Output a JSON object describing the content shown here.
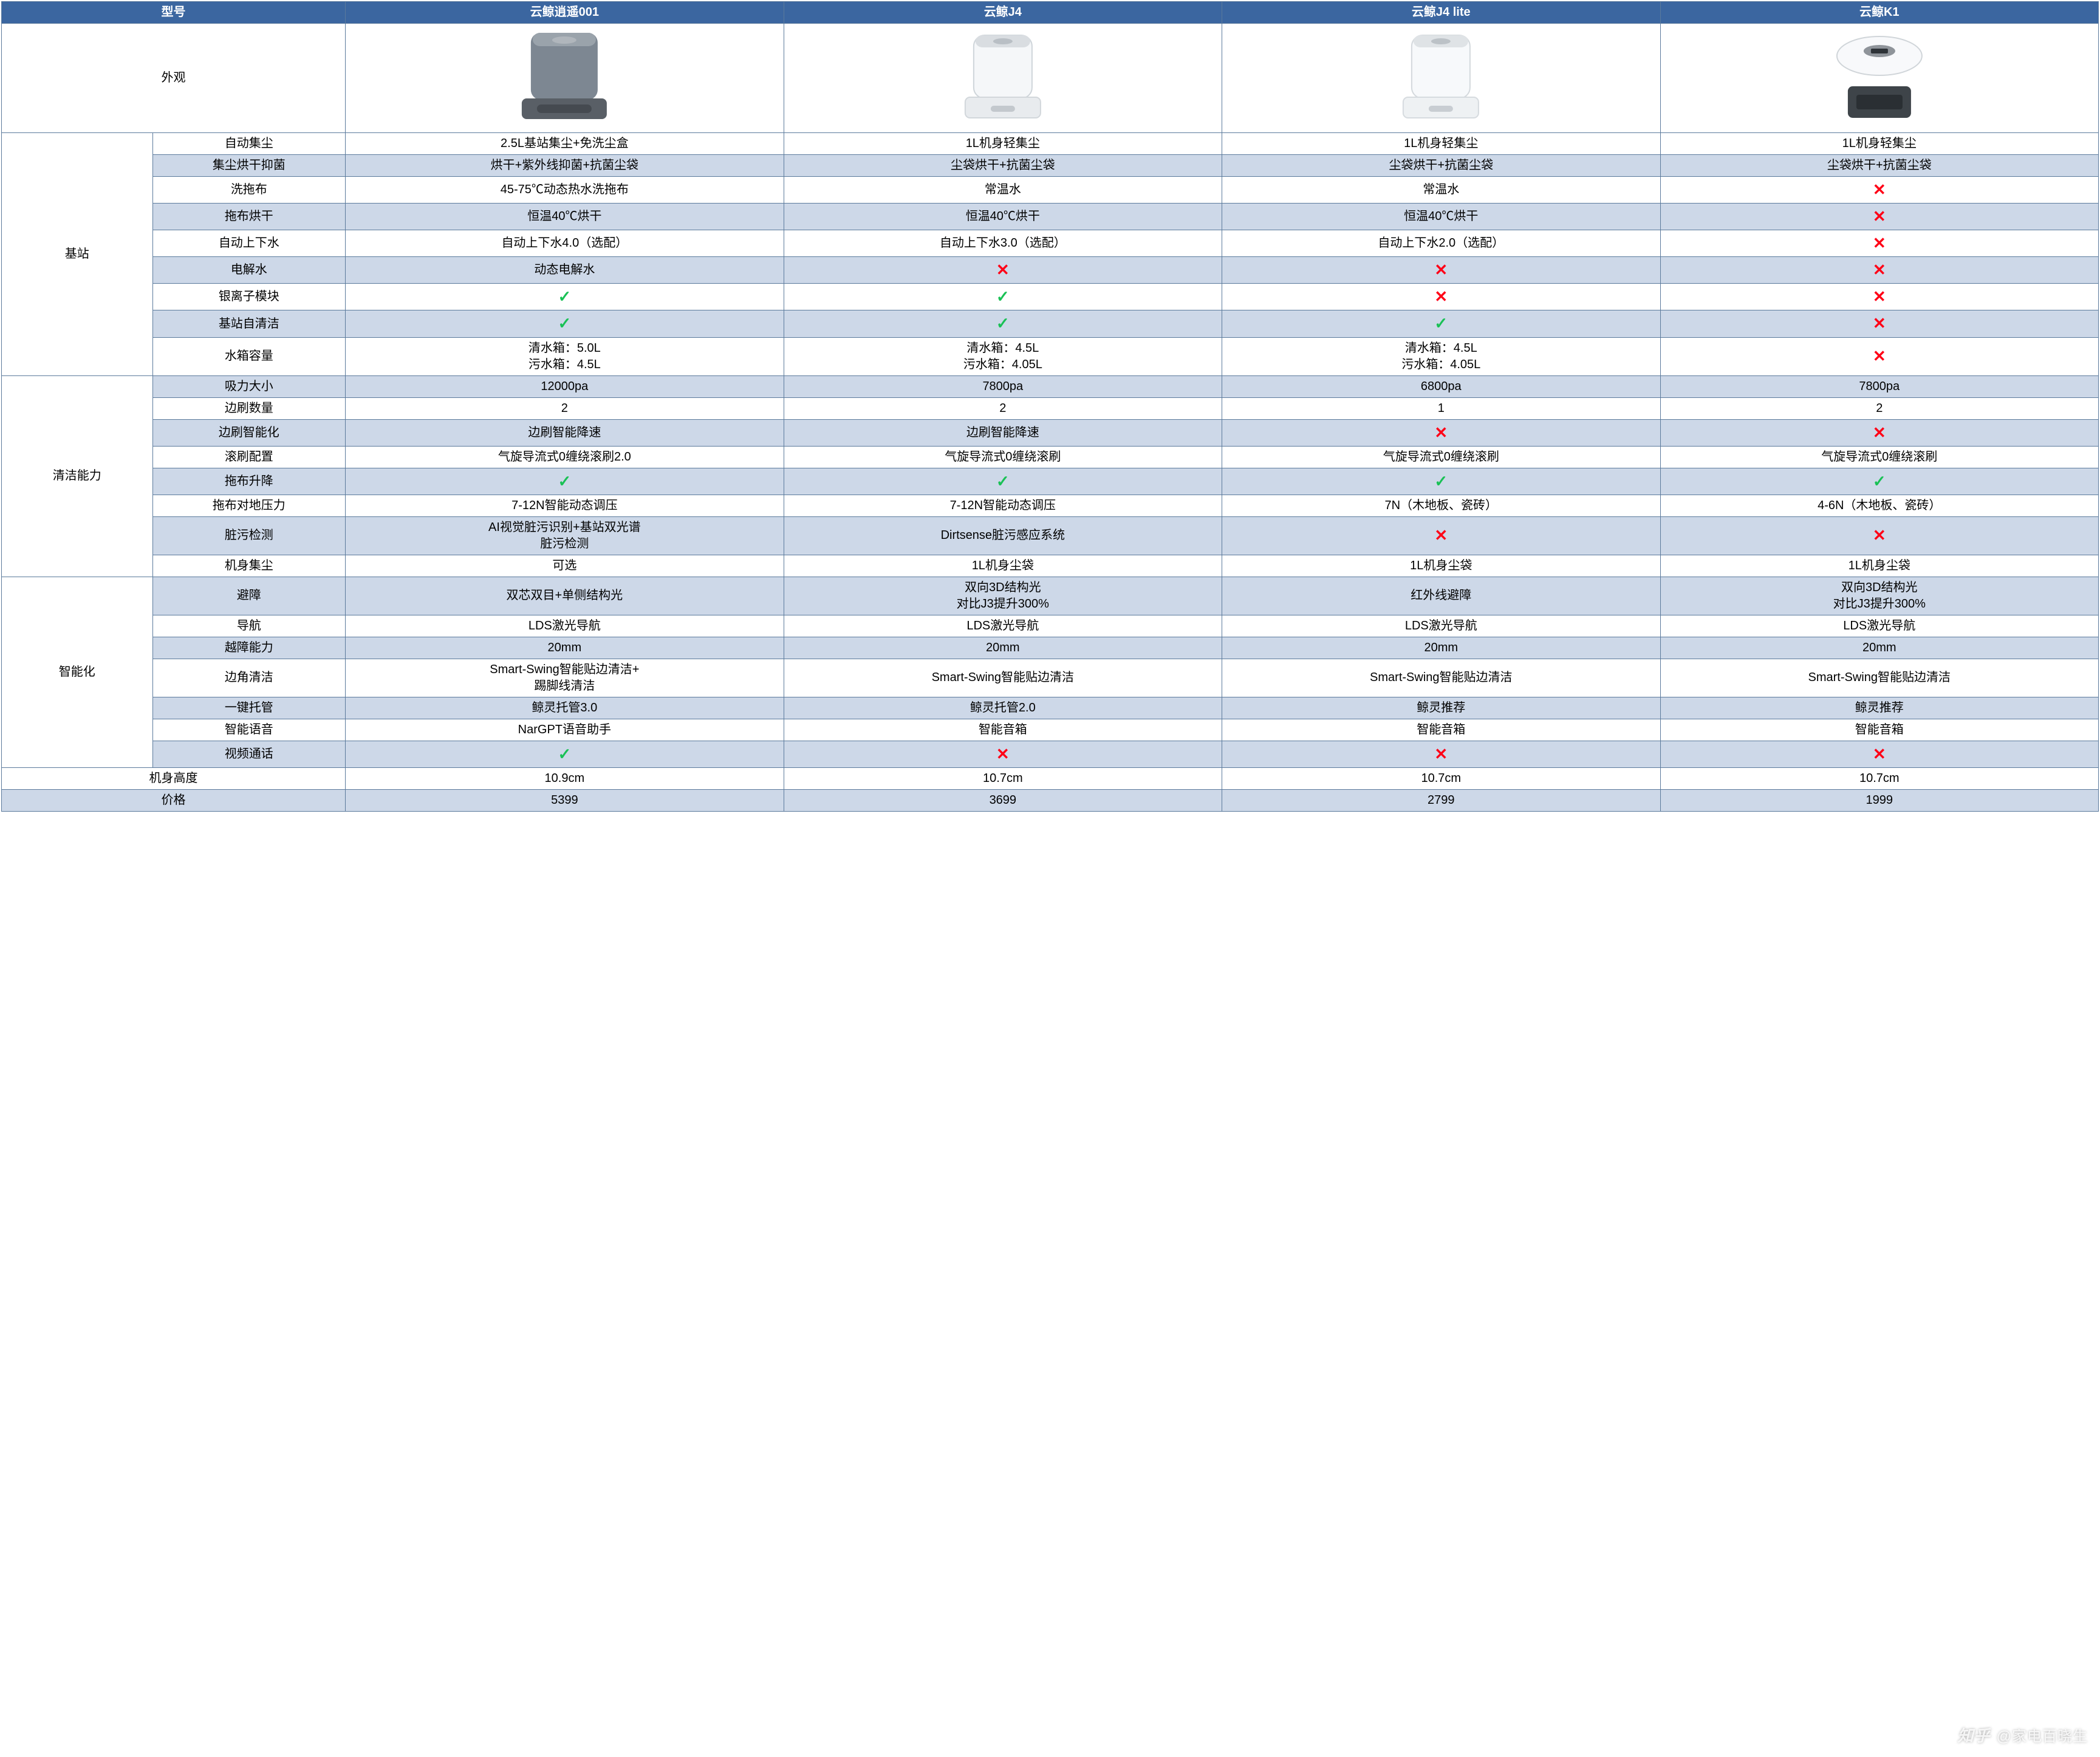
{
  "colors": {
    "header_bg": "#3b66a0",
    "header_fg": "#ffffff",
    "row_alt_bg": "#cdd8e8",
    "row_bg": "#ffffff",
    "border": "#5b7a9c",
    "check": "#19c155",
    "cross": "#ff0016",
    "text": "#000000"
  },
  "header": {
    "model_label": "型号",
    "products": [
      "云鲸逍遥001",
      "云鲸J4",
      "云鲸J4 lite",
      "云鲸K1"
    ]
  },
  "appearance_label": "外观",
  "product_images": {
    "p1": {
      "body": "#7d8792",
      "top": "#9aa3ab",
      "base": "#595f66"
    },
    "p2": {
      "body": "#f5f7f9",
      "top": "#d9dde1",
      "base": "#e8ebee"
    },
    "p3": {
      "body": "#f7f9fb",
      "top": "#dfe3e6",
      "base": "#eef1f3"
    },
    "p4": {
      "disc": "#f8f9fb",
      "hub": "#8f949a",
      "slab": "#3e4449"
    }
  },
  "categories": [
    {
      "name": "基站",
      "rows": [
        {
          "sub": "自动集尘",
          "vals": [
            "2.5L基站集尘+免洗尘盒",
            "1L机身轻集尘",
            "1L机身轻集尘",
            "1L机身轻集尘"
          ],
          "alt": false
        },
        {
          "sub": "集尘烘干抑菌",
          "vals": [
            "烘干+紫外线抑菌+抗菌尘袋",
            "尘袋烘干+抗菌尘袋",
            "尘袋烘干+抗菌尘袋",
            "尘袋烘干+抗菌尘袋"
          ],
          "alt": true
        },
        {
          "sub": "洗拖布",
          "vals": [
            "45-75℃动态热水洗拖布",
            "常温水",
            "常温水",
            "CROSS"
          ],
          "alt": false
        },
        {
          "sub": "拖布烘干",
          "vals": [
            "恒温40℃烘干",
            "恒温40℃烘干",
            "恒温40℃烘干",
            "CROSS"
          ],
          "alt": true
        },
        {
          "sub": "自动上下水",
          "vals": [
            "自动上下水4.0（选配）",
            "自动上下水3.0（选配）",
            "自动上下水2.0（选配）",
            "CROSS"
          ],
          "alt": false
        },
        {
          "sub": "电解水",
          "vals": [
            "动态电解水",
            "CROSS",
            "CROSS",
            "CROSS"
          ],
          "alt": true
        },
        {
          "sub": "银离子模块",
          "vals": [
            "CHECK",
            "CHECK",
            "CROSS",
            "CROSS"
          ],
          "alt": false
        },
        {
          "sub": "基站自清洁",
          "vals": [
            "CHECK",
            "CHECK",
            "CHECK",
            "CROSS"
          ],
          "alt": true
        },
        {
          "sub": "水箱容量",
          "vals": [
            "清水箱：5.0L\n污水箱：4.5L",
            "清水箱：4.5L\n污水箱：4.05L",
            "清水箱：4.5L\n污水箱：4.05L",
            "CROSS"
          ],
          "alt": false
        }
      ]
    },
    {
      "name": "清洁能力",
      "rows": [
        {
          "sub": "吸力大小",
          "vals": [
            "12000pa",
            "7800pa",
            "6800pa",
            "7800pa"
          ],
          "alt": true
        },
        {
          "sub": "边刷数量",
          "vals": [
            "2",
            "2",
            "1",
            "2"
          ],
          "alt": false
        },
        {
          "sub": "边刷智能化",
          "vals": [
            "边刷智能降速",
            "边刷智能降速",
            "CROSS",
            "CROSS"
          ],
          "alt": true
        },
        {
          "sub": "滚刷配置",
          "vals": [
            "气旋导流式0缠绕滚刷2.0",
            "气旋导流式0缠绕滚刷",
            "气旋导流式0缠绕滚刷",
            "气旋导流式0缠绕滚刷"
          ],
          "alt": false
        },
        {
          "sub": "拖布升降",
          "vals": [
            "CHECK",
            "CHECK",
            "CHECK",
            "CHECK"
          ],
          "alt": true
        },
        {
          "sub": "拖布对地压力",
          "vals": [
            "7-12N智能动态调压",
            "7-12N智能动态调压",
            "7N（木地板、瓷砖）",
            "4-6N（木地板、瓷砖）"
          ],
          "alt": false
        },
        {
          "sub": "脏污检测",
          "vals": [
            "AI视觉脏污识别+基站双光谱\n脏污检测",
            "Dirtsense脏污感应系统",
            "CROSS",
            "CROSS"
          ],
          "alt": true
        },
        {
          "sub": "机身集尘",
          "vals": [
            "可选",
            "1L机身尘袋",
            "1L机身尘袋",
            "1L机身尘袋"
          ],
          "alt": false
        }
      ]
    },
    {
      "name": "智能化",
      "rows": [
        {
          "sub": "避障",
          "vals": [
            "双芯双目+单侧结构光",
            "双向3D结构光\n对比J3提升300%",
            "红外线避障",
            "双向3D结构光\n对比J3提升300%"
          ],
          "alt": true
        },
        {
          "sub": "导航",
          "vals": [
            "LDS激光导航",
            "LDS激光导航",
            "LDS激光导航",
            "LDS激光导航"
          ],
          "alt": false
        },
        {
          "sub": "越障能力",
          "vals": [
            "20mm",
            "20mm",
            "20mm",
            "20mm"
          ],
          "alt": true
        },
        {
          "sub": "边角清洁",
          "vals": [
            "Smart-Swing智能贴边清洁+\n踢脚线清洁",
            "Smart-Swing智能贴边清洁",
            "Smart-Swing智能贴边清洁",
            "Smart-Swing智能贴边清洁"
          ],
          "alt": false
        },
        {
          "sub": "一键托管",
          "vals": [
            "鲸灵托管3.0",
            "鲸灵托管2.0",
            "鲸灵推荐",
            "鲸灵推荐"
          ],
          "alt": true
        },
        {
          "sub": "智能语音",
          "vals": [
            "NarGPT语音助手",
            "智能音箱",
            "智能音箱",
            "智能音箱"
          ],
          "alt": false
        },
        {
          "sub": "视频通话",
          "vals": [
            "CHECK",
            "CROSS",
            "CROSS",
            "CROSS"
          ],
          "alt": true
        }
      ]
    }
  ],
  "footer_rows": [
    {
      "sub": "机身高度",
      "vals": [
        "10.9cm",
        "10.7cm",
        "10.7cm",
        "10.7cm"
      ],
      "alt": false
    },
    {
      "sub": "价格",
      "vals": [
        "5399",
        "3699",
        "2799",
        "1999"
      ],
      "alt": true
    }
  ],
  "watermark": {
    "logo": "知乎",
    "author": "@家电百晓生"
  }
}
